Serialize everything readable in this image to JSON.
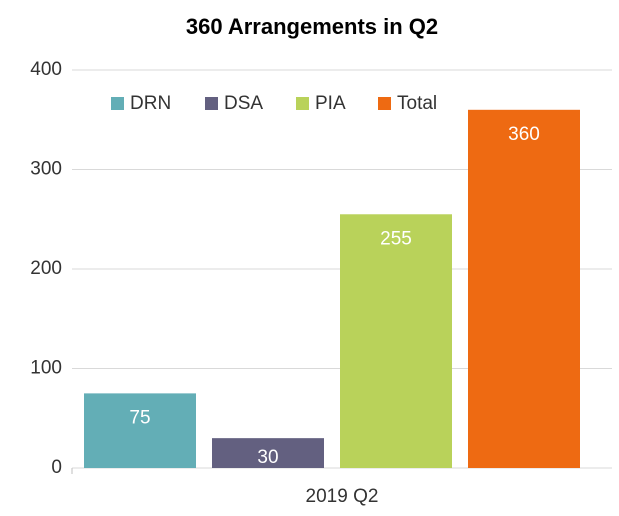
{
  "chart_data": {
    "type": "bar",
    "title": "360 Arrangements in Q2",
    "categories": [
      "2019 Q2"
    ],
    "series": [
      {
        "name": "DRN",
        "color": "#63aeb6",
        "values": [
          75
        ]
      },
      {
        "name": "DSA",
        "color": "#636080",
        "values": [
          30
        ]
      },
      {
        "name": "PIA",
        "color": "#b9d25a",
        "values": [
          255
        ]
      },
      {
        "name": "Total",
        "color": "#ee6a12",
        "values": [
          360
        ]
      }
    ],
    "ylim": [
      0,
      400
    ],
    "yticks": [
      0,
      100,
      200,
      300,
      400
    ],
    "grid": true,
    "legend": "top"
  }
}
